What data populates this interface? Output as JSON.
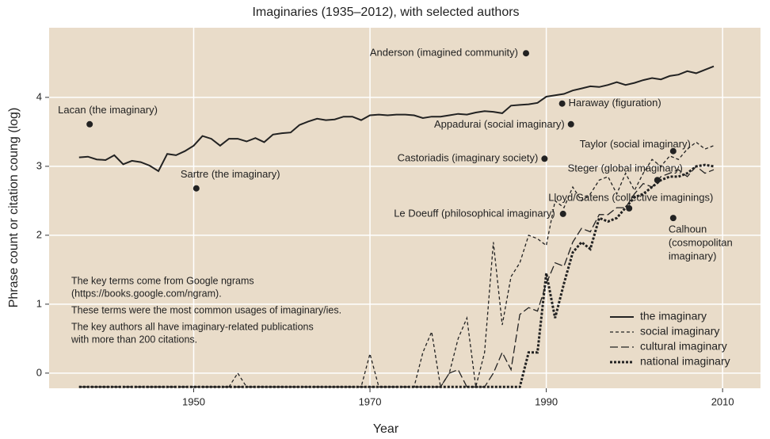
{
  "chart_data": {
    "type": "line",
    "title": "Imaginaries (1935–2012), with selected authors",
    "xlabel": "Year",
    "ylabel": "Phrase count or citation coung (log)",
    "xlim": [
      1933.6,
      2014.3
    ],
    "ylim": [
      -0.22,
      5.01
    ],
    "xticks": [
      1950,
      1970,
      1990,
      2010
    ],
    "yticks": [
      0,
      1,
      2,
      3,
      4
    ],
    "grid": true,
    "legend": "lower right",
    "x": [
      1937,
      1938,
      1939,
      1940,
      1941,
      1942,
      1943,
      1944,
      1945,
      1946,
      1947,
      1948,
      1949,
      1950,
      1951,
      1952,
      1953,
      1954,
      1955,
      1956,
      1957,
      1958,
      1959,
      1960,
      1961,
      1962,
      1963,
      1964,
      1965,
      1966,
      1967,
      1968,
      1969,
      1970,
      1971,
      1972,
      1973,
      1974,
      1975,
      1976,
      1977,
      1978,
      1979,
      1980,
      1981,
      1982,
      1983,
      1984,
      1985,
      1986,
      1987,
      1988,
      1989,
      1990,
      1991,
      1992,
      1993,
      1994,
      1995,
      1996,
      1997,
      1998,
      1999,
      2000,
      2001,
      2002,
      2003,
      2004,
      2005,
      2006,
      2007,
      2008,
      2009
    ],
    "series": [
      {
        "name": "the imaginary",
        "color": "#222222",
        "dash": "solid",
        "values": [
          3.13,
          3.14,
          3.1,
          3.09,
          3.16,
          3.03,
          3.08,
          3.06,
          3.01,
          2.93,
          3.18,
          3.16,
          3.22,
          3.3,
          3.44,
          3.4,
          3.3,
          3.4,
          3.4,
          3.36,
          3.41,
          3.35,
          3.46,
          3.48,
          3.49,
          3.6,
          3.65,
          3.69,
          3.67,
          3.68,
          3.72,
          3.72,
          3.67,
          3.74,
          3.75,
          3.74,
          3.75,
          3.75,
          3.74,
          3.7,
          3.72,
          3.72,
          3.74,
          3.76,
          3.75,
          3.78,
          3.8,
          3.79,
          3.77,
          3.88,
          3.89,
          3.9,
          3.92,
          4.01,
          4.03,
          4.05,
          4.1,
          4.13,
          4.16,
          4.15,
          4.18,
          4.22,
          4.18,
          4.21,
          4.25,
          4.28,
          4.26,
          4.31,
          4.33,
          4.38,
          4.35,
          4.4,
          4.45
        ]
      },
      {
        "name": "social imaginary",
        "color": "#222222",
        "dash": "short",
        "values": [
          -0.2,
          -0.2,
          -0.2,
          -0.2,
          -0.2,
          -0.2,
          -0.2,
          -0.2,
          -0.2,
          -0.2,
          -0.2,
          -0.2,
          -0.2,
          -0.2,
          -0.2,
          -0.2,
          -0.2,
          -0.2,
          0.0,
          -0.2,
          -0.2,
          -0.2,
          -0.2,
          -0.2,
          -0.2,
          -0.2,
          -0.2,
          -0.2,
          -0.2,
          -0.2,
          -0.2,
          -0.2,
          -0.2,
          0.28,
          -0.2,
          -0.2,
          -0.2,
          -0.2,
          -0.2,
          0.3,
          0.6,
          -0.2,
          0.0,
          0.5,
          0.8,
          -0.2,
          0.3,
          1.9,
          0.7,
          1.4,
          1.6,
          2.0,
          1.95,
          1.85,
          2.5,
          2.4,
          2.7,
          2.5,
          2.6,
          2.8,
          2.85,
          2.6,
          2.9,
          2.65,
          2.9,
          3.1,
          3.0,
          3.15,
          3.1,
          3.25,
          3.35,
          3.25,
          3.3
        ]
      },
      {
        "name": "cultural imaginary",
        "color": "#222222",
        "dash": "long",
        "values": [
          -0.2,
          -0.2,
          -0.2,
          -0.2,
          -0.2,
          -0.2,
          -0.2,
          -0.2,
          -0.2,
          -0.2,
          -0.2,
          -0.2,
          -0.2,
          -0.2,
          -0.2,
          -0.2,
          -0.2,
          -0.2,
          -0.2,
          -0.2,
          -0.2,
          -0.2,
          -0.2,
          -0.2,
          -0.2,
          -0.2,
          -0.2,
          -0.2,
          -0.2,
          -0.2,
          -0.2,
          -0.2,
          -0.2,
          -0.2,
          -0.2,
          -0.2,
          -0.2,
          -0.2,
          -0.2,
          -0.2,
          -0.2,
          -0.2,
          0.0,
          0.05,
          -0.2,
          -0.2,
          -0.2,
          0.0,
          0.3,
          0.05,
          0.85,
          0.95,
          0.9,
          1.3,
          1.6,
          1.55,
          1.9,
          2.1,
          2.05,
          2.3,
          2.3,
          2.4,
          2.4,
          2.6,
          2.75,
          2.7,
          2.85,
          2.9,
          2.95,
          2.85,
          3.0,
          2.9,
          2.95
        ]
      },
      {
        "name": "national imaginary",
        "color": "#222222",
        "dash": "dotted",
        "values": [
          -0.2,
          -0.2,
          -0.2,
          -0.2,
          -0.2,
          -0.2,
          -0.2,
          -0.2,
          -0.2,
          -0.2,
          -0.2,
          -0.2,
          -0.2,
          -0.2,
          -0.2,
          -0.2,
          -0.2,
          -0.2,
          -0.2,
          -0.2,
          -0.2,
          -0.2,
          -0.2,
          -0.2,
          -0.2,
          -0.2,
          -0.2,
          -0.2,
          -0.2,
          -0.2,
          -0.2,
          -0.2,
          -0.2,
          -0.2,
          -0.2,
          -0.2,
          -0.2,
          -0.2,
          -0.2,
          -0.2,
          -0.2,
          -0.2,
          -0.2,
          -0.2,
          -0.2,
          -0.2,
          -0.2,
          -0.2,
          -0.2,
          -0.2,
          -0.2,
          0.3,
          0.3,
          1.45,
          0.8,
          1.3,
          1.75,
          1.9,
          1.8,
          2.25,
          2.2,
          2.25,
          2.4,
          2.55,
          2.6,
          2.7,
          2.8,
          2.85,
          2.85,
          2.9,
          3.0,
          3.02,
          3.0
        ]
      }
    ],
    "points": [
      {
        "label": [
          "Lacan (the imaginary)"
        ],
        "x": 1938.2,
        "y": 3.61
      },
      {
        "label": [
          "Sartre (the imaginary)"
        ],
        "x": 1950.3,
        "y": 2.68
      },
      {
        "label": [
          "Anderson (imagined community)"
        ],
        "x": 1987.7,
        "y": 4.64
      },
      {
        "label": [
          "Haraway (figuration)"
        ],
        "x": 1991.8,
        "y": 3.91
      },
      {
        "label": [
          "Appadurai (social imaginary)"
        ],
        "x": 1992.8,
        "y": 3.61
      },
      {
        "label": [
          "Castoriadis (imaginary society)"
        ],
        "x": 1989.8,
        "y": 3.11
      },
      {
        "label": [
          "Taylor (social imaginary)"
        ],
        "x": 2004.4,
        "y": 3.22
      },
      {
        "label": [
          "Steger (global imaginary)"
        ],
        "x": 2002.6,
        "y": 2.8
      },
      {
        "label": [
          "Lloyd/Gatens (collective imaginings)"
        ],
        "x": 1999.4,
        "y": 2.39
      },
      {
        "label": [
          "Le Doeuff (philosophical imaginary)"
        ],
        "x": 1991.9,
        "y": 2.31
      },
      {
        "label": [
          "Calhoun",
          "(cosmopolitan",
          "imaginary)"
        ],
        "x": 2004.4,
        "y": 2.25
      }
    ],
    "notes": [
      [
        "The key terms come from Google ngrams",
        "(https://books.google.com/ngram)."
      ],
      [
        "These terms were the most common usages of imaginary/ies."
      ],
      [
        "The key authors all have imaginary-related publications",
        "with more than 200 citations."
      ]
    ]
  }
}
